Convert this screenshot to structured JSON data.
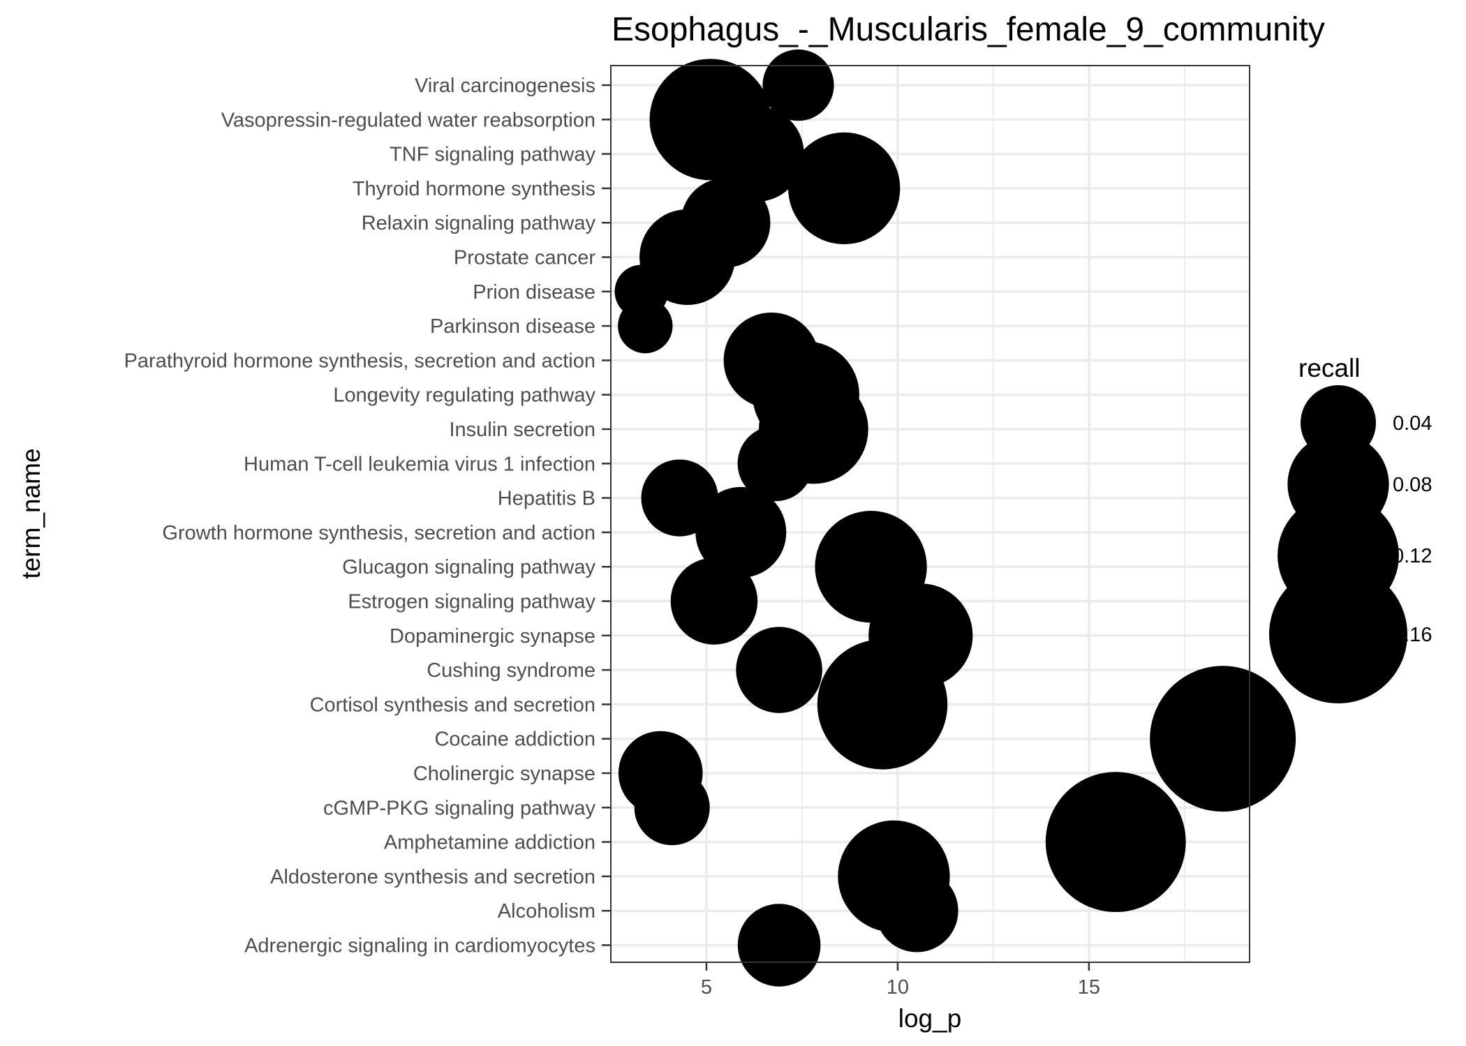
{
  "chart_data": {
    "type": "scatter",
    "title": "Esophagus_-_Muscularis_female_9_community",
    "xlabel": "log_p",
    "ylabel": "term_name",
    "xlim": [
      2.5,
      19.2
    ],
    "xticks": [
      5,
      10,
      15
    ],
    "grid": true,
    "categories": [
      "Viral carcinogenesis",
      "Vasopressin-regulated water reabsorption",
      "TNF signaling pathway",
      "Thyroid hormone synthesis",
      "Relaxin signaling pathway",
      "Prostate cancer",
      "Prion disease",
      "Parkinson disease",
      "Parathyroid hormone synthesis, secretion and action",
      "Longevity regulating pathway",
      "Insulin secretion",
      "Human T-cell leukemia virus 1 infection",
      "Hepatitis B",
      "Growth hormone synthesis, secretion and action",
      "Glucagon signaling pathway",
      "Estrogen signaling pathway",
      "Dopaminergic synapse",
      "Cushing syndrome",
      "Cortisol synthesis and secretion",
      "Cocaine addiction",
      "Cholinergic synapse",
      "cGMP-PKG signaling pathway",
      "Amphetamine addiction",
      "Aldosterone synthesis and secretion",
      "Alcoholism",
      "Adrenergic signaling in cardiomyocytes"
    ],
    "points": [
      {
        "term": "Viral carcinogenesis",
        "log_p": 7.4,
        "recall": 0.035
      },
      {
        "term": "Vasopressin-regulated water reabsorption",
        "log_p": 5.1,
        "recall": 0.12
      },
      {
        "term": "TNF signaling pathway",
        "log_p": 6.3,
        "recall": 0.07
      },
      {
        "term": "Thyroid hormone synthesis",
        "log_p": 8.6,
        "recall": 0.1
      },
      {
        "term": "Relaxin signaling pathway",
        "log_p": 5.5,
        "recall": 0.06
      },
      {
        "term": "Prostate cancer",
        "log_p": 4.5,
        "recall": 0.07
      },
      {
        "term": "Prion disease",
        "log_p": 3.3,
        "recall": 0.017
      },
      {
        "term": "Parkinson disease",
        "log_p": 3.4,
        "recall": 0.018
      },
      {
        "term": "Parathyroid hormone synthesis, secretion and action",
        "log_p": 6.7,
        "recall": 0.07
      },
      {
        "term": "Longevity regulating pathway",
        "log_p": 7.6,
        "recall": 0.09
      },
      {
        "term": "Insulin secretion",
        "log_p": 7.8,
        "recall": 0.095
      },
      {
        "term": "Human T-cell leukemia virus 1 infection",
        "log_p": 6.8,
        "recall": 0.04
      },
      {
        "term": "Hepatitis B",
        "log_p": 4.3,
        "recall": 0.042
      },
      {
        "term": "Growth hormone synthesis, secretion and action",
        "log_p": 5.9,
        "recall": 0.062
      },
      {
        "term": "Glucagon signaling pathway",
        "log_p": 9.3,
        "recall": 0.1
      },
      {
        "term": "Estrogen signaling pathway",
        "log_p": 5.2,
        "recall": 0.056
      },
      {
        "term": "Dopaminergic synapse",
        "log_p": 10.6,
        "recall": 0.085
      },
      {
        "term": "Cushing syndrome",
        "log_p": 6.9,
        "recall": 0.055
      },
      {
        "term": "Cortisol synthesis and secretion",
        "log_p": 9.6,
        "recall": 0.14
      },
      {
        "term": "Cocaine addiction",
        "log_p": 18.5,
        "recall": 0.18
      },
      {
        "term": "Cholinergic synapse",
        "log_p": 3.8,
        "recall": 0.052
      },
      {
        "term": "cGMP-PKG signaling pathway",
        "log_p": 4.1,
        "recall": 0.04
      },
      {
        "term": "Amphetamine addiction",
        "log_p": 15.7,
        "recall": 0.165
      },
      {
        "term": "Aldosterone synthesis and secretion",
        "log_p": 9.9,
        "recall": 0.1
      },
      {
        "term": "Alcoholism",
        "log_p": 10.5,
        "recall": 0.05
      },
      {
        "term": "Adrenergic signaling in cardiomyocytes",
        "log_p": 6.9,
        "recall": 0.05
      }
    ],
    "size_legend": {
      "title": "recall",
      "position": "right",
      "values": [
        0.04,
        0.08,
        0.12,
        0.16
      ],
      "labels": [
        "0.04",
        "0.08",
        "0.12",
        "0.16"
      ]
    },
    "colors": {
      "point": "#000000",
      "grid": "#ebebeb",
      "panel_border": "#333333",
      "text": "#4d4d4d"
    }
  }
}
